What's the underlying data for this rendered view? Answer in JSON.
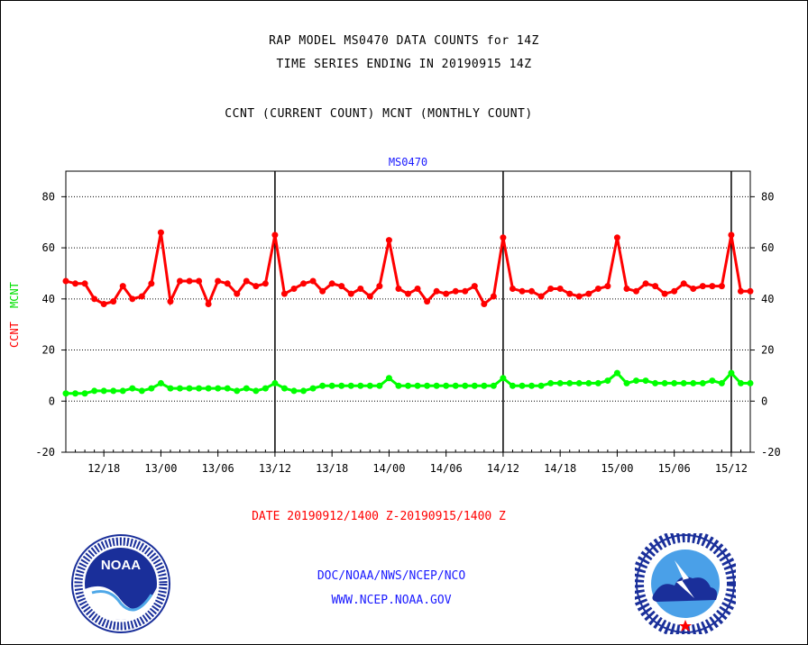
{
  "header": {
    "title_line1": "RAP MODEL MS0470 DATA COUNTS for 14Z",
    "title_line2": "TIME SERIES ENDING IN 20190915 14Z",
    "subtitle": "CCNT (CURRENT COUNT) MCNT (MONTHLY COUNT)"
  },
  "chart_data": {
    "type": "line",
    "title": "MS0470",
    "ylabel_series1": "CCNT",
    "ylabel_series2": "MCNT",
    "xlabel": "DATE 20190912/1400 Z-20190915/1400 Z",
    "ylim": [
      -20,
      90
    ],
    "yticks": [
      -20,
      0,
      20,
      40,
      60,
      80
    ],
    "xticks": [
      {
        "hour": 4,
        "label": "12/18"
      },
      {
        "hour": 10,
        "label": "13/00"
      },
      {
        "hour": 16,
        "label": "13/06"
      },
      {
        "hour": 22,
        "label": "13/12"
      },
      {
        "hour": 28,
        "label": "13/18"
      },
      {
        "hour": 34,
        "label": "14/00"
      },
      {
        "hour": 40,
        "label": "14/06"
      },
      {
        "hour": 46,
        "label": "14/12"
      },
      {
        "hour": 52,
        "label": "14/18"
      },
      {
        "hour": 58,
        "label": "15/00"
      },
      {
        "hour": 64,
        "label": "15/06"
      },
      {
        "hour": 70,
        "label": "15/12"
      }
    ],
    "xlim": [
      0,
      72
    ],
    "grid": true,
    "day_markers": [
      22,
      46,
      70
    ],
    "series": [
      {
        "name": "CCNT",
        "color": "#ff0000",
        "values": [
          47,
          46,
          46,
          40,
          38,
          39,
          45,
          40,
          41,
          46,
          66,
          39,
          47,
          47,
          47,
          38,
          47,
          46,
          42,
          47,
          45,
          46,
          65,
          42,
          44,
          46,
          47,
          43,
          46,
          45,
          42,
          44,
          41,
          45,
          63,
          44,
          42,
          44,
          39,
          43,
          42,
          43,
          43,
          45,
          38,
          41,
          64,
          44,
          43,
          43,
          41,
          44,
          44,
          42,
          41,
          42,
          44,
          45,
          64,
          44,
          43,
          46,
          45,
          42,
          43,
          46,
          44,
          45,
          45,
          45,
          65,
          43,
          43
        ]
      },
      {
        "name": "MCNT",
        "color": "#00ff00",
        "values": [
          3,
          3,
          3,
          4,
          4,
          4,
          4,
          5,
          4,
          5,
          7,
          5,
          5,
          5,
          5,
          5,
          5,
          5,
          4,
          5,
          4,
          5,
          7,
          5,
          4,
          4,
          5,
          6,
          6,
          6,
          6,
          6,
          6,
          6,
          9,
          6,
          6,
          6,
          6,
          6,
          6,
          6,
          6,
          6,
          6,
          6,
          9,
          6,
          6,
          6,
          6,
          7,
          7,
          7,
          7,
          7,
          7,
          8,
          11,
          7,
          8,
          8,
          7,
          7,
          7,
          7,
          7,
          7,
          8,
          7,
          11,
          7,
          7
        ]
      }
    ]
  },
  "footer": {
    "org_line": "DOC/NOAA/NWS/NCEP/NCO",
    "url_line": "WWW.NCEP.NOAA.GOV"
  },
  "logos": {
    "noaa": "noaa-logo",
    "nws": "national-weather-service-logo"
  }
}
